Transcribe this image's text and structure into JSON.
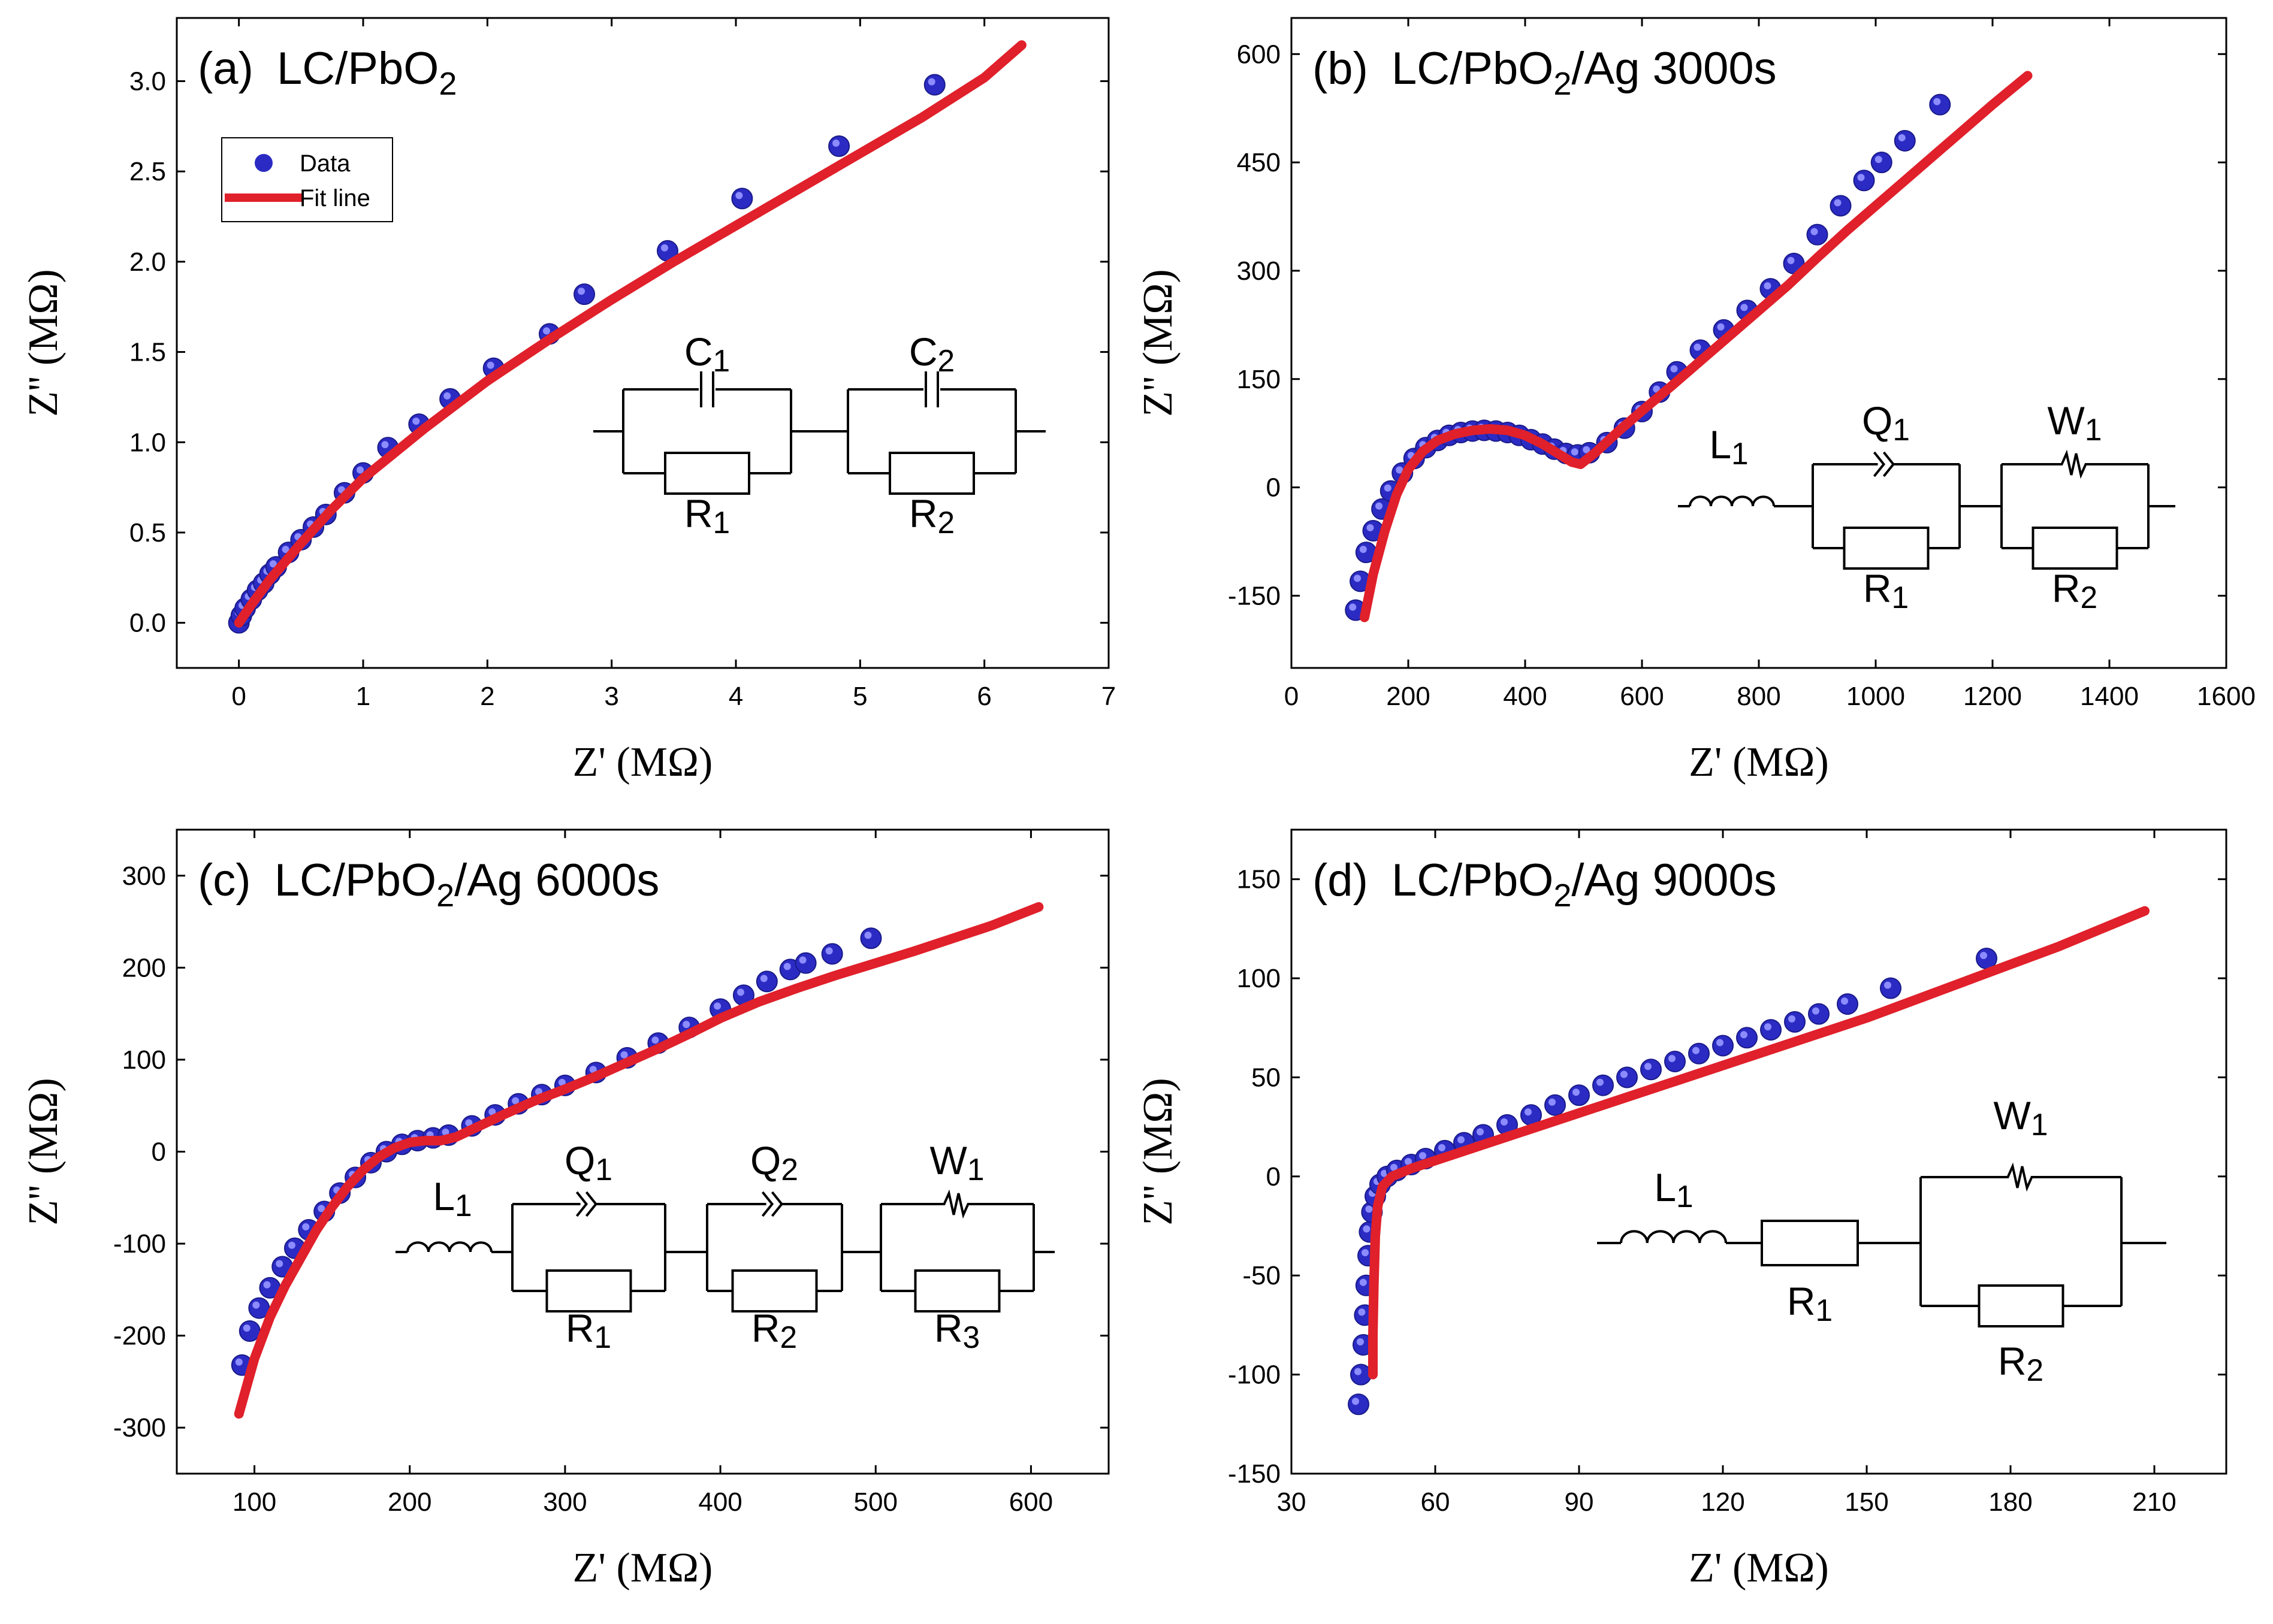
{
  "colors": {
    "data": "#2b2bc4",
    "data_hi": "#8c8cff",
    "fit": "#e0202a",
    "axis": "#000000"
  },
  "chart_data": [
    {
      "type": "scatter",
      "panel_id": "a",
      "title_prefix": "(a)",
      "title": "LC/PbO",
      "title_sub": "2",
      "title_suffix": "",
      "xlabel": "Z' (MΩ)",
      "ylabel": "Z'' (MΩ)",
      "xlim": [
        -0.5,
        7
      ],
      "ylim": [
        -0.25,
        3.35
      ],
      "xticks": [
        0,
        1,
        2,
        3,
        4,
        5,
        6,
        7
      ],
      "yticks": [
        0.0,
        0.5,
        1.0,
        1.5,
        2.0,
        2.5,
        3.0
      ],
      "ytick_decimals": 1,
      "legend": {
        "position": "top-left",
        "entries": [
          "Data",
          "Fit line"
        ]
      },
      "series": [
        {
          "name": "Data",
          "kind": "points",
          "x": [
            0.0,
            0.02,
            0.05,
            0.1,
            0.15,
            0.2,
            0.25,
            0.3,
            0.4,
            0.5,
            0.6,
            0.7,
            0.85,
            1.0,
            1.2,
            1.45,
            1.7,
            2.05,
            2.5,
            2.78,
            3.45,
            4.05,
            4.83,
            5.6
          ],
          "y": [
            0.0,
            0.04,
            0.08,
            0.13,
            0.18,
            0.22,
            0.27,
            0.31,
            0.39,
            0.46,
            0.53,
            0.6,
            0.72,
            0.83,
            0.97,
            1.1,
            1.24,
            1.41,
            1.6,
            1.82,
            2.06,
            2.35,
            2.64,
            2.98
          ]
        },
        {
          "name": "Fit line",
          "kind": "line",
          "x": [
            0.0,
            0.1,
            0.25,
            0.5,
            0.75,
            1.0,
            1.5,
            2.0,
            2.5,
            3.0,
            3.5,
            4.0,
            4.5,
            5.0,
            5.5,
            6.0,
            6.3
          ],
          "y": [
            0.0,
            0.1,
            0.24,
            0.44,
            0.63,
            0.8,
            1.08,
            1.34,
            1.57,
            1.79,
            2.0,
            2.2,
            2.4,
            2.6,
            2.8,
            3.02,
            3.2
          ]
        }
      ],
      "circuit": {
        "variant": "a",
        "labels": {
          "c1": {
            "main": "C",
            "sub": "1"
          },
          "c2": {
            "main": "C",
            "sub": "2"
          },
          "r1": {
            "main": "R",
            "sub": "1"
          },
          "r2": {
            "main": "R",
            "sub": "2"
          }
        }
      }
    },
    {
      "type": "scatter",
      "panel_id": "b",
      "title_prefix": "(b)",
      "title": "LC/PbO",
      "title_sub": "2",
      "title_suffix": "/Ag 3000s",
      "xlabel": "Z' (MΩ)",
      "ylabel": "Z'' (MΩ)",
      "xlim": [
        0,
        1600
      ],
      "ylim": [
        -250,
        650
      ],
      "xticks": [
        0,
        200,
        400,
        600,
        800,
        1000,
        1200,
        1400,
        1600
      ],
      "yticks": [
        -150,
        0,
        150,
        300,
        450,
        600
      ],
      "ytick_decimals": 0,
      "series": [
        {
          "name": "",
          "kind": "points",
          "x": [
            110,
            118,
            128,
            140,
            155,
            170,
            190,
            210,
            230,
            250,
            270,
            290,
            310,
            330,
            350,
            370,
            390,
            410,
            430,
            450,
            470,
            490,
            510,
            540,
            570,
            600,
            630,
            660,
            700,
            740,
            780,
            820,
            860,
            900,
            940,
            980,
            1010,
            1050,
            1110
          ],
          "y": [
            -170,
            -130,
            -90,
            -60,
            -30,
            -5,
            20,
            40,
            55,
            65,
            72,
            76,
            78,
            79,
            78,
            76,
            72,
            66,
            60,
            53,
            47,
            45,
            48,
            62,
            82,
            105,
            132,
            160,
            190,
            218,
            245,
            275,
            310,
            350,
            390,
            425,
            450,
            480,
            530
          ]
        },
        {
          "name": "",
          "kind": "line",
          "x": [
            125,
            140,
            160,
            180,
            200,
            225,
            250,
            280,
            310,
            340,
            370,
            400,
            430,
            460,
            480,
            495,
            520,
            560,
            600,
            650,
            700,
            750,
            800,
            850,
            900,
            950,
            1000,
            1050,
            1100,
            1150,
            1200,
            1260
          ],
          "y": [
            -180,
            -120,
            -60,
            -10,
            25,
            50,
            65,
            74,
            79,
            81,
            79,
            72,
            60,
            45,
            35,
            32,
            48,
            78,
            106,
            140,
            175,
            210,
            245,
            280,
            318,
            355,
            390,
            425,
            460,
            495,
            530,
            570
          ]
        }
      ],
      "circuit": {
        "variant": "b",
        "labels": {
          "l1": {
            "main": "L",
            "sub": "1"
          },
          "q1": {
            "main": "Q",
            "sub": "1"
          },
          "w1": {
            "main": "W",
            "sub": "1"
          },
          "r1": {
            "main": "R",
            "sub": "1"
          },
          "r2": {
            "main": "R",
            "sub": "2"
          }
        }
      }
    },
    {
      "type": "scatter",
      "panel_id": "c",
      "title_prefix": "(c)",
      "title": "LC/PbO",
      "title_sub": "2",
      "title_suffix": "/Ag 6000s",
      "xlabel": "Z' (MΩ)",
      "ylabel": "Z'' (MΩ)",
      "xlim": [
        50,
        650
      ],
      "ylim": [
        -350,
        350
      ],
      "xticks": [
        100,
        200,
        300,
        400,
        500,
        600
      ],
      "yticks": [
        -300,
        -200,
        -100,
        0,
        100,
        200,
        300
      ],
      "ytick_decimals": 0,
      "series": [
        {
          "name": "",
          "kind": "points",
          "x": [
            92,
            97,
            103,
            110,
            118,
            126,
            135,
            145,
            155,
            165,
            175,
            185,
            195,
            205,
            215,
            225,
            240,
            255,
            270,
            285,
            300,
            320,
            340,
            360,
            380,
            400,
            415,
            430,
            445,
            455,
            472,
            497
          ],
          "y": [
            -232,
            -195,
            -170,
            -148,
            -125,
            -105,
            -85,
            -65,
            -45,
            -28,
            -12,
            0,
            8,
            12,
            15,
            18,
            28,
            40,
            52,
            62,
            72,
            86,
            102,
            118,
            135,
            155,
            170,
            185,
            198,
            205,
            215,
            232
          ]
        },
        {
          "name": "",
          "kind": "line",
          "x": [
            90,
            95,
            100,
            110,
            120,
            130,
            140,
            150,
            160,
            170,
            180,
            190,
            200,
            210,
            220,
            230,
            240,
            260,
            280,
            300,
            320,
            340,
            360,
            380,
            400,
            425,
            450,
            475,
            500,
            525,
            550,
            575,
            605
          ],
          "y": [
            -285,
            -255,
            -225,
            -180,
            -145,
            -115,
            -85,
            -60,
            -38,
            -20,
            -6,
            4,
            10,
            12,
            12,
            16,
            24,
            40,
            55,
            68,
            82,
            97,
            112,
            128,
            145,
            163,
            178,
            192,
            205,
            218,
            232,
            246,
            266
          ]
        }
      ],
      "circuit": {
        "variant": "c",
        "labels": {
          "l1": {
            "main": "L",
            "sub": "1"
          },
          "q1": {
            "main": "Q",
            "sub": "1"
          },
          "q2": {
            "main": "Q",
            "sub": "2"
          },
          "w1": {
            "main": "W",
            "sub": "1"
          },
          "r1": {
            "main": "R",
            "sub": "1"
          },
          "r2": {
            "main": "R",
            "sub": "2"
          },
          "r3": {
            "main": "R",
            "sub": "3"
          }
        }
      }
    },
    {
      "type": "scatter",
      "panel_id": "d",
      "title_prefix": "(d)",
      "title": "LC/PbO",
      "title_sub": "2",
      "title_suffix": "/Ag 9000s",
      "xlabel": "Z' (MΩ)",
      "ylabel": "Z'' (MΩ)",
      "xlim": [
        30,
        225
      ],
      "ylim": [
        -150,
        175
      ],
      "xticks": [
        30,
        60,
        90,
        120,
        150,
        180,
        210
      ],
      "yticks": [
        -150,
        -100,
        -50,
        0,
        50,
        100,
        150
      ],
      "ytick_decimals": 0,
      "series": [
        {
          "name": "",
          "kind": "points",
          "x": [
            44,
            44.5,
            45,
            45.3,
            45.6,
            46,
            46.3,
            46.8,
            47.5,
            48.5,
            50,
            52,
            55,
            58,
            62,
            66,
            70,
            75,
            80,
            85,
            90,
            95,
            100,
            105,
            110,
            115,
            120,
            125,
            130,
            135,
            140,
            146,
            155,
            175
          ],
          "y": [
            -115,
            -100,
            -85,
            -70,
            -55,
            -40,
            -28,
            -18,
            -10,
            -4,
            0,
            3,
            6,
            9,
            13,
            17,
            21,
            26,
            31,
            36,
            41,
            46,
            50,
            54,
            58,
            62,
            66,
            70,
            74,
            78,
            82,
            87,
            95,
            110
          ]
        },
        {
          "name": "",
          "kind": "line",
          "x": [
            47,
            47,
            47.2,
            47.5,
            48,
            49,
            51,
            55,
            60,
            70,
            80,
            90,
            100,
            110,
            120,
            130,
            140,
            150,
            160,
            170,
            180,
            190,
            200,
            208
          ],
          "y": [
            -100,
            -80,
            -55,
            -30,
            -15,
            -5,
            0,
            4,
            8,
            16,
            24,
            32,
            40,
            48,
            56,
            64,
            72,
            80,
            89,
            98,
            107,
            116,
            126,
            134
          ]
        }
      ],
      "circuit": {
        "variant": "d",
        "labels": {
          "l1": {
            "main": "L",
            "sub": "1"
          },
          "w1": {
            "main": "W",
            "sub": "1"
          },
          "r1": {
            "main": "R",
            "sub": "1"
          },
          "r2": {
            "main": "R",
            "sub": "2"
          }
        }
      }
    }
  ]
}
